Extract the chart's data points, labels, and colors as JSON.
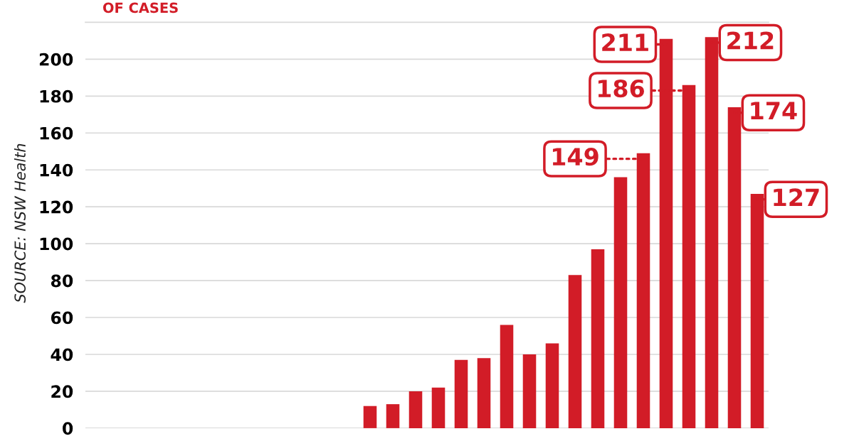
{
  "chart_data": {
    "type": "bar",
    "title": "OF CASES",
    "categories": [
      null,
      null,
      null,
      null,
      null,
      null,
      null,
      null,
      null,
      null,
      null,
      null,
      null,
      null,
      null,
      null,
      null,
      null,
      null,
      null,
      null,
      null,
      null,
      null,
      null,
      null,
      null,
      null,
      null,
      null
    ],
    "values": [
      null,
      null,
      null,
      null,
      null,
      null,
      null,
      null,
      null,
      null,
      null,
      null,
      12,
      13,
      20,
      22,
      37,
      38,
      56,
      40,
      46,
      83,
      97,
      136,
      149,
      211,
      186,
      212,
      174,
      127
    ],
    "value_labels": [
      null,
      null,
      null,
      null,
      null,
      null,
      null,
      null,
      null,
      null,
      null,
      null,
      null,
      null,
      null,
      null,
      null,
      null,
      null,
      null,
      null,
      null,
      null,
      null,
      "149",
      "211",
      "186",
      "212",
      "174",
      "127"
    ],
    "color": "#d21c27",
    "ylim": [
      0,
      220
    ],
    "yticks": [
      0,
      20,
      40,
      60,
      80,
      100,
      120,
      140,
      160,
      180,
      200
    ],
    "grid": "y",
    "annotations": [
      "SOURCE: NSW Health"
    ]
  }
}
